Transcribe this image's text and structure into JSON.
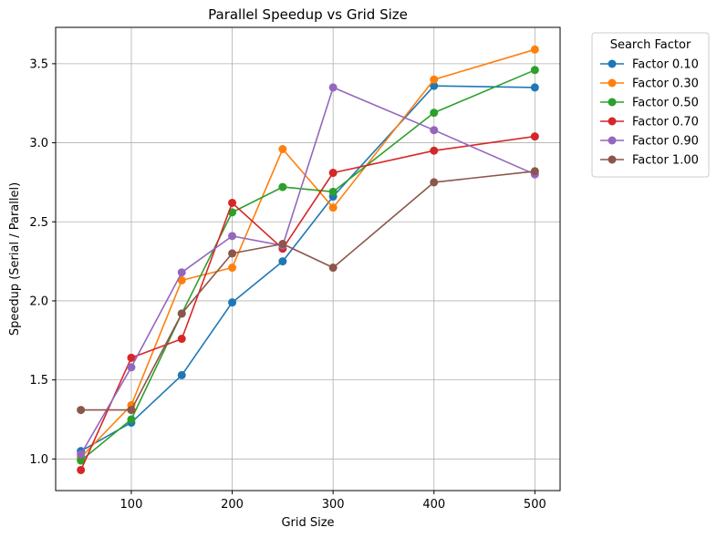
{
  "chart_data": {
    "type": "line",
    "title": "Parallel Speedup vs Grid Size",
    "xlabel": "Grid Size",
    "ylabel": "Speedup (Serial / Parallel)",
    "xlim": [
      25,
      525
    ],
    "ylim": [
      0.8,
      3.73
    ],
    "xticks": [
      100,
      200,
      300,
      400,
      500
    ],
    "yticks": [
      1.0,
      1.5,
      2.0,
      2.5,
      3.0,
      3.5
    ],
    "ytick_labels": [
      "1.0",
      "1.5",
      "2.0",
      "2.5",
      "3.0",
      "3.5"
    ],
    "grid": true,
    "legend_title": "Search Factor",
    "legend_position": "outside-top-right",
    "x": [
      50,
      100,
      150,
      200,
      250,
      300,
      400,
      500
    ],
    "series": [
      {
        "name": "Factor 0.10",
        "color": "#1f77b4",
        "values": [
          1.05,
          1.23,
          1.53,
          1.99,
          2.25,
          2.66,
          3.36,
          3.35
        ]
      },
      {
        "name": "Factor 0.30",
        "color": "#ff7f0e",
        "values": [
          1.01,
          1.34,
          2.13,
          2.21,
          2.96,
          2.59,
          3.4,
          3.59
        ]
      },
      {
        "name": "Factor 0.50",
        "color": "#2ca02c",
        "values": [
          0.99,
          1.25,
          1.92,
          2.56,
          2.72,
          2.69,
          3.19,
          3.46
        ]
      },
      {
        "name": "Factor 0.70",
        "color": "#d62728",
        "values": [
          0.93,
          1.64,
          1.76,
          2.62,
          2.33,
          2.81,
          2.95,
          3.04
        ]
      },
      {
        "name": "Factor 0.90",
        "color": "#9467bd",
        "values": [
          1.03,
          1.58,
          2.18,
          2.41,
          2.35,
          3.35,
          3.08,
          2.8
        ]
      },
      {
        "name": "Factor 1.00",
        "color": "#8c564b",
        "values": [
          1.31,
          1.31,
          1.92,
          2.3,
          2.36,
          2.21,
          2.75,
          2.82
        ]
      }
    ]
  }
}
